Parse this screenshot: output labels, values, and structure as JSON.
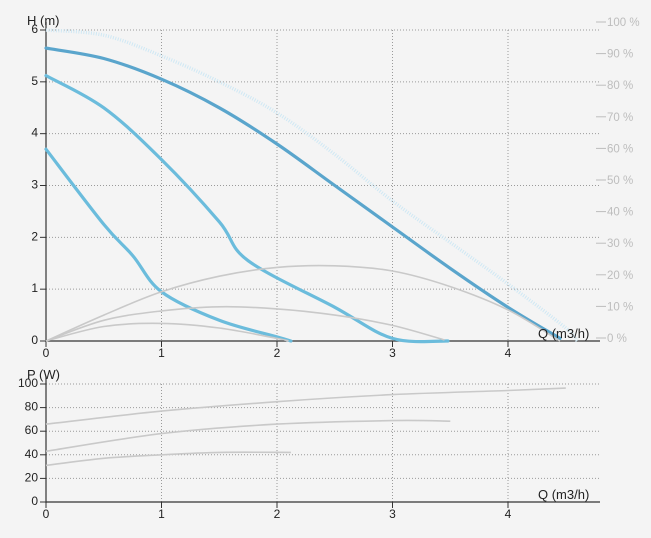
{
  "chart_data": [
    {
      "type": "line",
      "ylabel": "H (m)",
      "xlabel": "Q (m3/h)",
      "xlim": [
        0,
        4.6
      ],
      "ylim": [
        0,
        6
      ],
      "x_ticks": [
        "0",
        "1",
        "2",
        "3",
        "4"
      ],
      "y_ticks": [
        "0",
        "1",
        "2",
        "3",
        "4",
        "5",
        "6"
      ],
      "y2_ticks": [
        "0 %",
        "10 %",
        "20 %",
        "30 %",
        "40 %",
        "50 %",
        "60 %",
        "70 %",
        "80 %",
        "90 %",
        "100 %"
      ],
      "grid": true,
      "colors": {
        "max_curve": "#5aa5cc",
        "curves": "#6bbcdc",
        "efficiency": "#c9c9c9",
        "max_power_line": "#cfe8f4"
      },
      "series": [
        {
          "role": "head",
          "points": [
            [
              0,
              5.65
            ],
            [
              0.5,
              5.45
            ],
            [
              1,
              5.05
            ],
            [
              1.5,
              4.5
            ],
            [
              2,
              3.8
            ],
            [
              2.5,
              3.0
            ],
            [
              3,
              2.2
            ],
            [
              3.5,
              1.4
            ],
            [
              4,
              0.65
            ],
            [
              4.45,
              0.05
            ]
          ]
        },
        {
          "role": "head",
          "points": [
            [
              0,
              5.12
            ],
            [
              0.5,
              4.5
            ],
            [
              1,
              3.5
            ],
            [
              1.5,
              2.3
            ],
            [
              1.75,
              1.55
            ],
            [
              2.5,
              0.65
            ],
            [
              3,
              0.05
            ],
            [
              3.48,
              0.0
            ]
          ]
        },
        {
          "role": "head",
          "points": [
            [
              0,
              3.7
            ],
            [
              0.5,
              2.25
            ],
            [
              0.75,
              1.65
            ],
            [
              1,
              0.95
            ],
            [
              1.5,
              0.4
            ],
            [
              2,
              0.08
            ],
            [
              2.12,
              0.0
            ]
          ]
        },
        {
          "role": "max-power",
          "points": [
            [
              0,
              6.0
            ],
            [
              0.5,
              5.9
            ],
            [
              1,
              5.5
            ],
            [
              1.5,
              5.0
            ],
            [
              2,
              4.4
            ],
            [
              2.5,
              3.6
            ],
            [
              3,
              2.7
            ],
            [
              3.5,
              1.9
            ],
            [
              4,
              1.1
            ],
            [
              4.5,
              0.25
            ],
            [
              4.6,
              0.0
            ]
          ]
        },
        {
          "role": "efficiency",
          "points": [
            [
              0,
              0
            ],
            [
              0.5,
              0.5
            ],
            [
              1,
              0.95
            ],
            [
              1.5,
              1.25
            ],
            [
              2,
              1.42
            ],
            [
              2.5,
              1.45
            ],
            [
              3,
              1.35
            ],
            [
              3.5,
              1.05
            ],
            [
              4,
              0.6
            ],
            [
              4.45,
              0.0
            ]
          ]
        },
        {
          "role": "efficiency",
          "points": [
            [
              0,
              0
            ],
            [
              0.5,
              0.4
            ],
            [
              1,
              0.58
            ],
            [
              1.5,
              0.66
            ],
            [
              2,
              0.62
            ],
            [
              2.5,
              0.5
            ],
            [
              3,
              0.3
            ],
            [
              3.45,
              0.02
            ]
          ]
        },
        {
          "role": "efficiency",
          "points": [
            [
              0,
              0
            ],
            [
              0.5,
              0.28
            ],
            [
              1,
              0.34
            ],
            [
              1.5,
              0.25
            ],
            [
              2,
              0.05
            ],
            [
              2.1,
              0.0
            ]
          ]
        }
      ]
    },
    {
      "type": "line",
      "ylabel": "P (W)",
      "xlabel": "Q (m3/h)",
      "xlim": [
        0,
        4.6
      ],
      "ylim": [
        0,
        100
      ],
      "x_ticks": [
        "0",
        "1",
        "2",
        "3",
        "4"
      ],
      "y_ticks": [
        "0",
        "20",
        "40",
        "60",
        "80",
        "100"
      ],
      "grid": true,
      "colors": {
        "curves": "#c9c9c9"
      },
      "series": [
        {
          "role": "power",
          "points": [
            [
              0,
              66
            ],
            [
              1,
              77
            ],
            [
              2,
              85
            ],
            [
              3,
              91
            ],
            [
              4,
              94.5
            ],
            [
              4.5,
              96.5
            ]
          ]
        },
        {
          "role": "power",
          "points": [
            [
              0,
              43
            ],
            [
              1,
              58
            ],
            [
              2,
              66
            ],
            [
              3,
              69
            ],
            [
              3.5,
              68.5
            ]
          ]
        },
        {
          "role": "power",
          "points": [
            [
              0,
              31
            ],
            [
              0.5,
              37
            ],
            [
              1,
              40
            ],
            [
              1.5,
              42
            ],
            [
              2.12,
              42
            ]
          ]
        }
      ]
    }
  ]
}
